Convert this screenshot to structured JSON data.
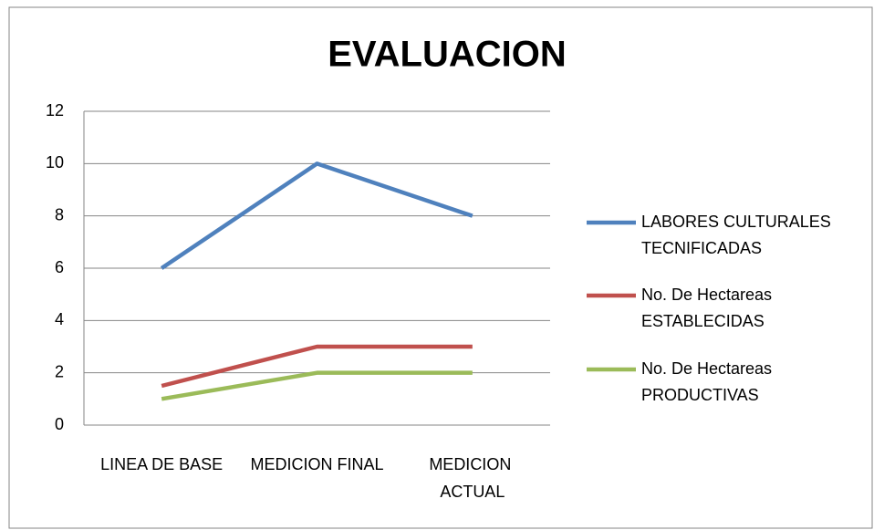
{
  "chart_data": {
    "type": "line",
    "title": "EVALUACION",
    "categories": [
      "LINEA DE BASE",
      "MEDICION FINAL",
      "MEDICION ACTUAL"
    ],
    "series": [
      {
        "name": "LABORES CULTURALES TECNIFICADAS",
        "color": "#4f81bd",
        "values": [
          6,
          10,
          8
        ]
      },
      {
        "name": "No. De Hectareas ESTABLECIDAS",
        "color": "#c0504d",
        "values": [
          1.5,
          3,
          3
        ]
      },
      {
        "name": "No. De Hectareas PRODUCTIVAS",
        "color": "#9bbb59",
        "values": [
          1,
          2,
          2
        ]
      }
    ],
    "ylim": [
      0,
      12
    ],
    "yticks": [
      0,
      2,
      4,
      6,
      8,
      10,
      12
    ],
    "grid": true,
    "legend": "right"
  }
}
